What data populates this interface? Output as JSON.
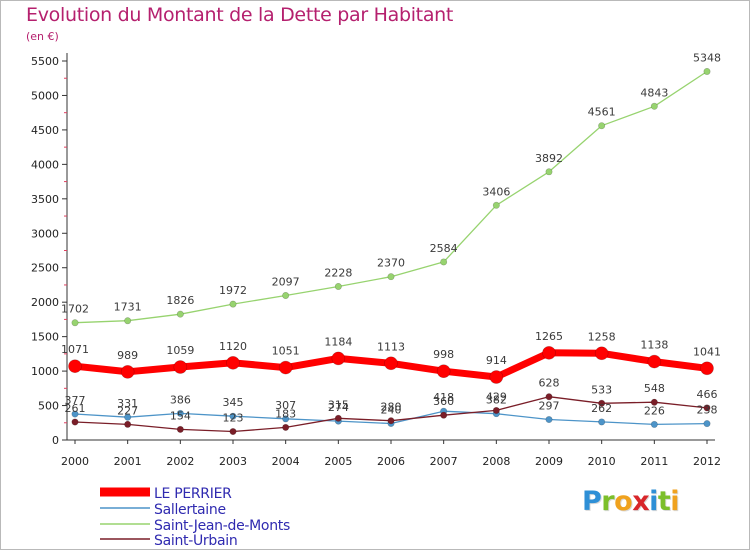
{
  "title": "Evolution du Montant de la Dette par Habitant",
  "subtitle": "(en €)",
  "logo": {
    "text": "Proxiti",
    "letters": [
      {
        "ch": "P",
        "color": "#2e8fd6"
      },
      {
        "ch": "r",
        "color": "#7cbf2a"
      },
      {
        "ch": "o",
        "color": "#f0a21e"
      },
      {
        "ch": "x",
        "color": "#d8262a"
      },
      {
        "ch": "i",
        "color": "#2e8fd6"
      },
      {
        "ch": "t",
        "color": "#7cbf2a"
      },
      {
        "ch": "i",
        "color": "#f0a21e"
      }
    ]
  },
  "chart_data": {
    "type": "line",
    "title": "Evolution du Montant de la Dette par Habitant",
    "subtitle": "(en €)",
    "xlabel": "",
    "ylabel": "",
    "ylim": [
      0,
      5500
    ],
    "yticks": [
      0,
      500,
      1000,
      1500,
      2000,
      2500,
      3000,
      3500,
      4000,
      4500,
      5000,
      5500
    ],
    "x": [
      "2000",
      "2001",
      "2002",
      "2003",
      "2004",
      "2005",
      "2006",
      "2007",
      "2008",
      "2009",
      "2010",
      "2011",
      "2012"
    ],
    "grid": false,
    "legend_position": "bottom-left",
    "series": [
      {
        "name": "LE PERRIER",
        "color": "#ff0000",
        "width": 7,
        "marker_r": 6.5,
        "labels": true,
        "values": [
          1071,
          989,
          1059,
          1120,
          1051,
          1184,
          1113,
          998,
          914,
          1265,
          1258,
          1138,
          1041
        ]
      },
      {
        "name": "Sallertaine",
        "color": "#4d94c8",
        "width": 1.3,
        "marker_r": 3.2,
        "labels": true,
        "values": [
          377,
          331,
          386,
          345,
          307,
          274,
          240,
          418,
          382,
          297,
          262,
          226,
          238
        ]
      },
      {
        "name": "Saint-Jean-de-Monts",
        "color": "#97d36f",
        "width": 1.3,
        "marker_r": 3.2,
        "labels": true,
        "values": [
          1702,
          1731,
          1826,
          1972,
          2097,
          2228,
          2370,
          2584,
          3406,
          3892,
          4561,
          4843,
          5348
        ]
      },
      {
        "name": "Saint-Urbain",
        "color": "#7a1e28",
        "width": 1.3,
        "marker_r": 3.2,
        "labels": true,
        "values": [
          261,
          227,
          154,
          123,
          183,
          315,
          280,
          360,
          429,
          628,
          533,
          548,
          466
        ]
      }
    ]
  }
}
